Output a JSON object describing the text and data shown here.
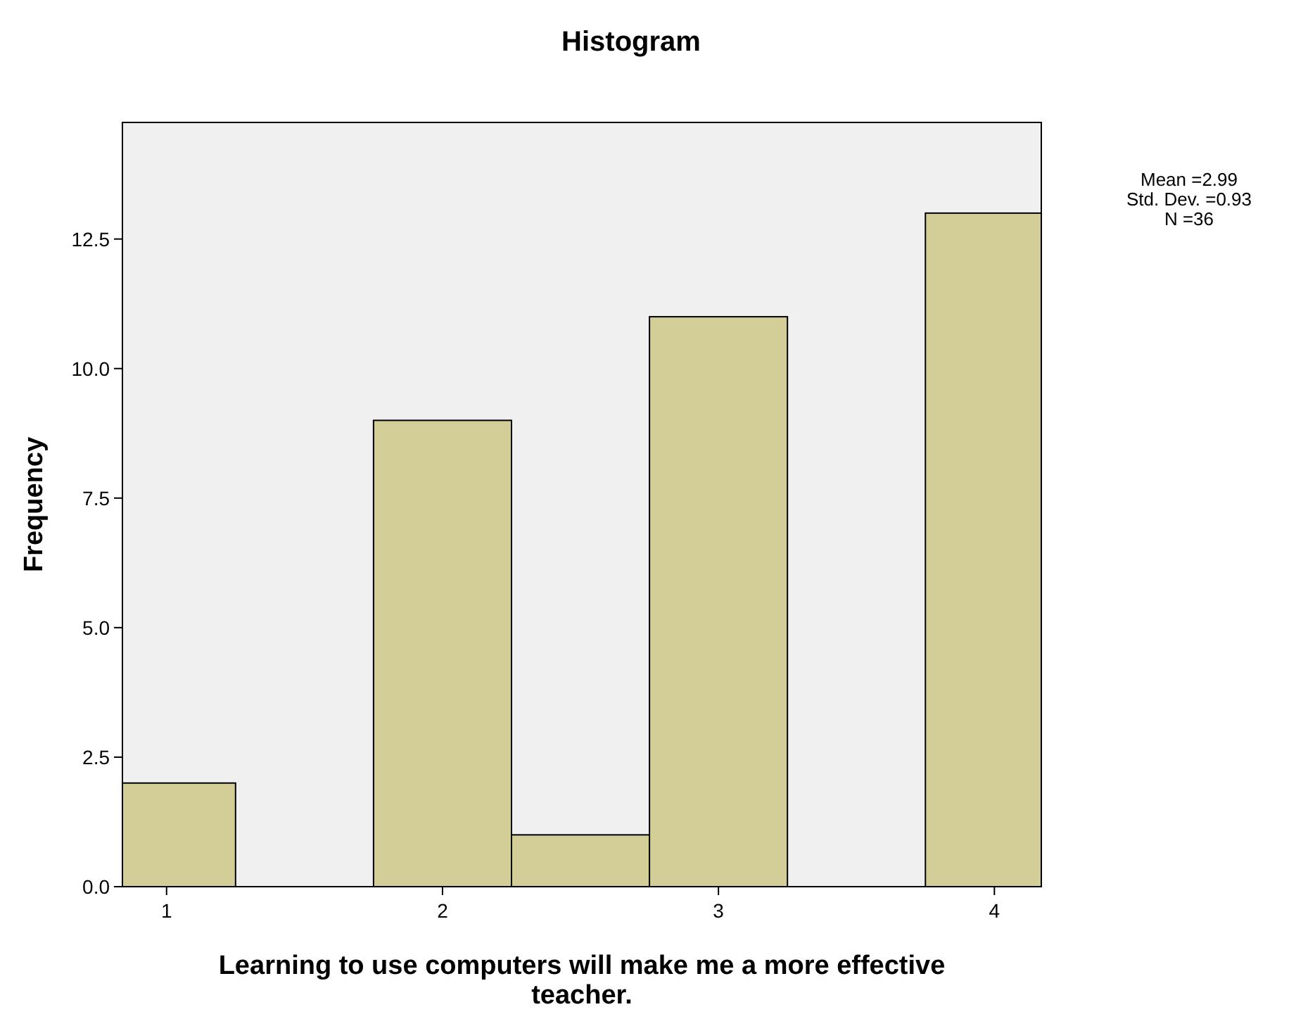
{
  "chart_data": {
    "type": "histogram",
    "title": "Histogram",
    "xlabel": "Learning to use computers will make me a more effective teacher.",
    "ylabel": "Frequency",
    "bins": [
      0.84,
      1.25,
      1.75,
      2.25,
      2.75,
      3.25,
      3.75,
      4.17
    ],
    "values": [
      2,
      0,
      9,
      1,
      11,
      0,
      13
    ],
    "color": "#d3ce98",
    "xlim": [
      0.84,
      4.17
    ],
    "xticks": [
      1,
      2,
      3,
      4
    ],
    "ylim": [
      0,
      14.75
    ],
    "yticks": [
      {
        "value": 0,
        "label": "0.0"
      },
      {
        "value": 2.5,
        "label": "2.5"
      },
      {
        "value": 5,
        "label": "5.0"
      },
      {
        "value": 7.5,
        "label": "7.5"
      },
      {
        "value": 10,
        "label": "10.0"
      },
      {
        "value": 12.5,
        "label": "12.5"
      }
    ],
    "annotations": [
      "Mean =2.99",
      "Std. Dev. =0.93",
      "N =36"
    ],
    "grid": false
  }
}
